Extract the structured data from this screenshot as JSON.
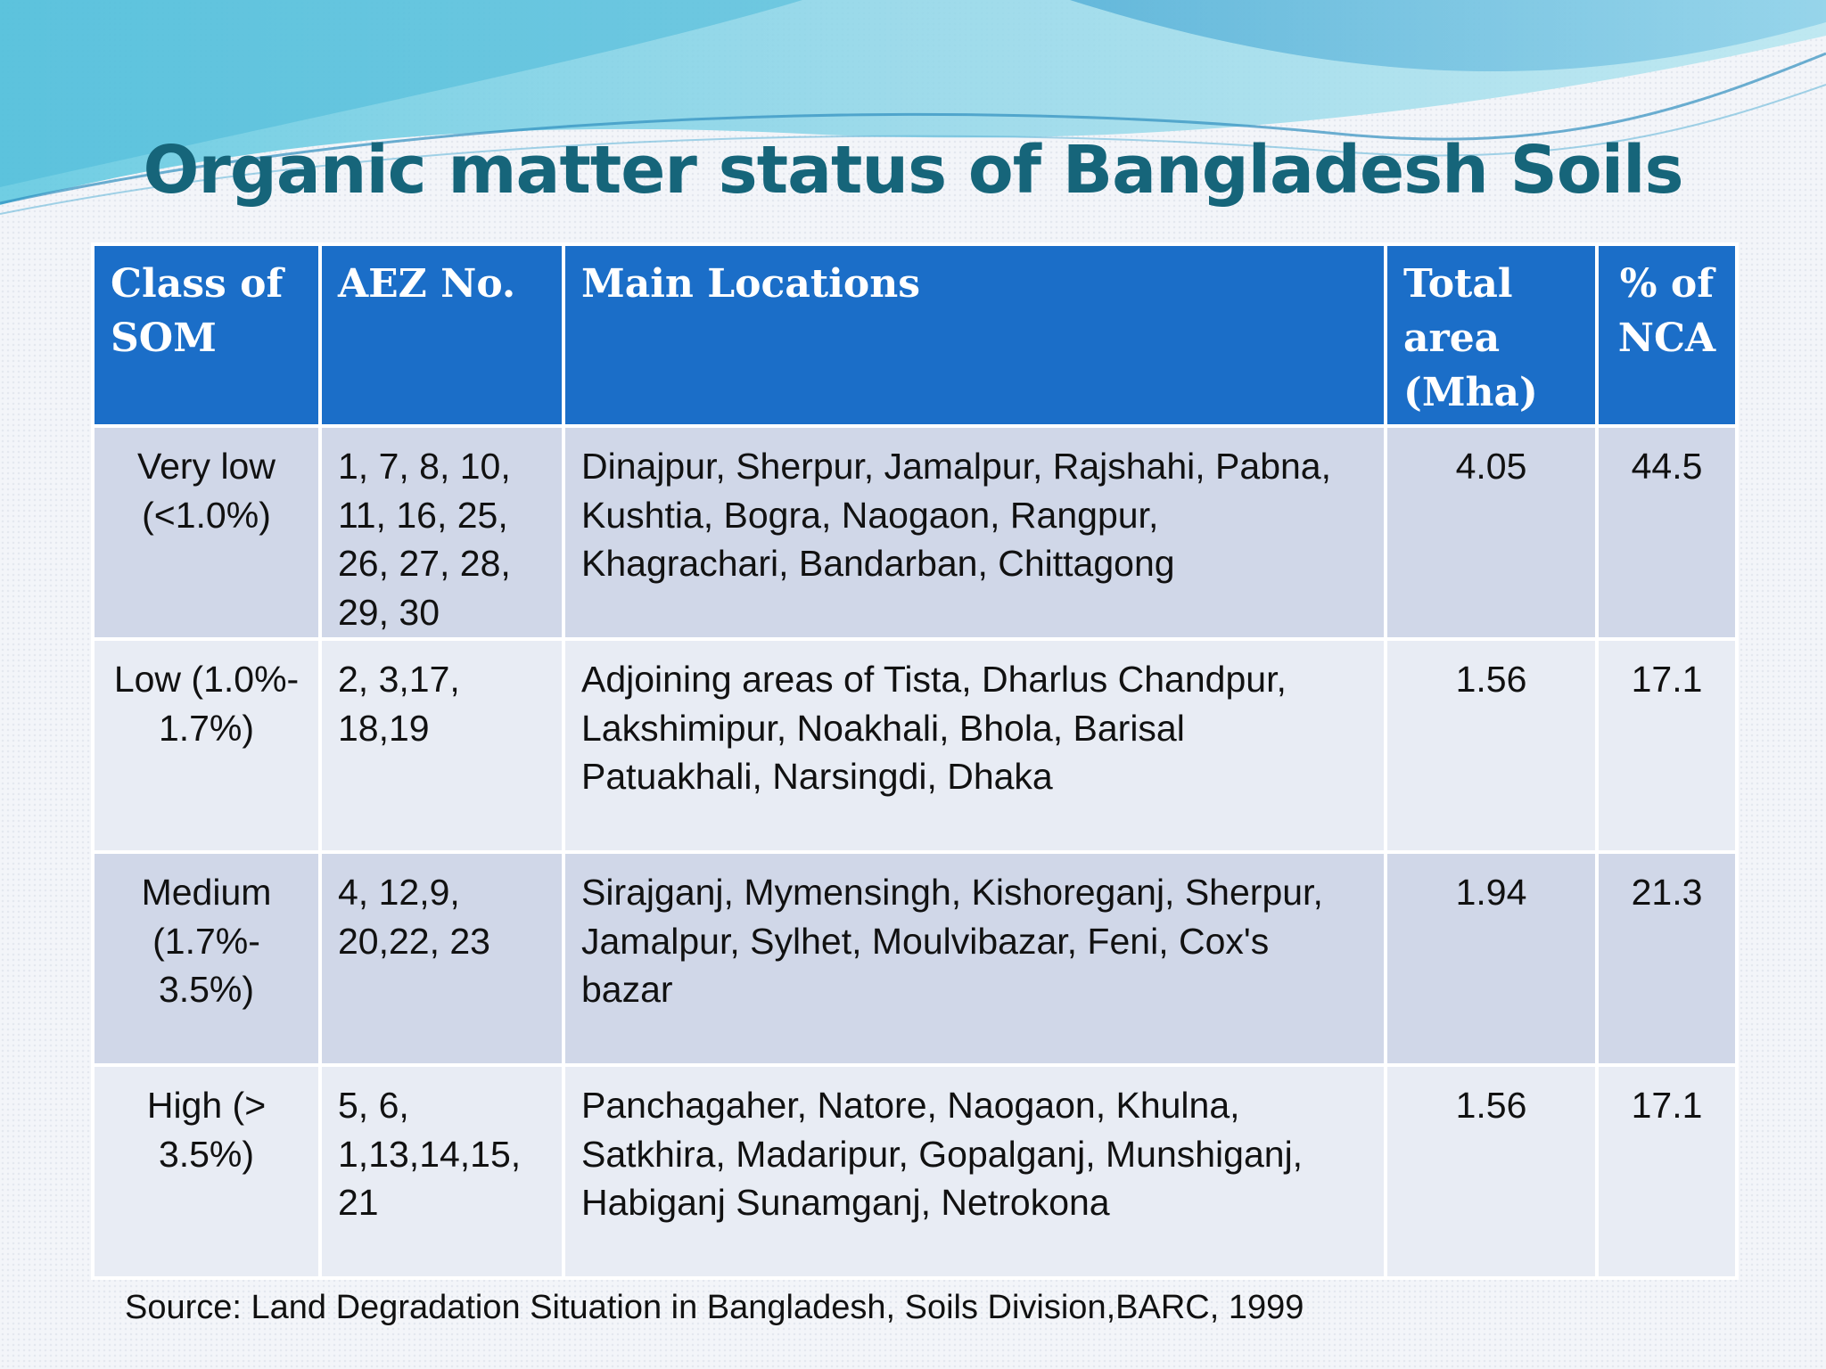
{
  "title": "Organic matter status of Bangladesh Soils",
  "colors": {
    "title": "#16657a",
    "header_bg": "#1b6ec8",
    "row_dark": "#d0d7e8",
    "row_light": "#e8ecf4"
  },
  "table": {
    "headers": [
      "Class of SOM",
      "AEZ No.",
      "Main Locations",
      "Total area (Mha)",
      "% of NCA"
    ],
    "rows": [
      {
        "class": "Very low (<1.0%)",
        "aez": "1, 7, 8, 10, 11, 16, 25, 26, 27, 28, 29, 30",
        "locations": "Dinajpur, Sherpur, Jamalpur, Rajshahi, Pabna, Kushtia, Bogra, Naogaon, Rangpur, Khagrachari, Bandarban, Chittagong",
        "area": "4.05",
        "pct": "44.5"
      },
      {
        "class": "Low (1.0%- 1.7%)",
        "aez": "2, 3,17, 18,19",
        "locations": "Adjoining areas of Tista, Dharlus Chandpur, Lakshimipur, Noakhali, Bhola, Barisal Patuakhali, Narsingdi, Dhaka",
        "area": "1.56",
        "pct": "17.1"
      },
      {
        "class": "Medium (1.7%- 3.5%)",
        "aez": "4, 12,9, 20,22, 23",
        "locations": "Sirajganj, Mymensingh, Kishoreganj, Sherpur, Jamalpur, Sylhet, Moulvibazar, Feni, Cox's bazar",
        "area": "1.94",
        "pct": "21.3"
      },
      {
        "class": "High (> 3.5%)",
        "aez": "5, 6, 1,13,14,15, 21",
        "locations": "Panchagaher, Natore, Naogaon, Khulna, Satkhira, Madaripur, Gopalganj, Munshiganj, Habiganj Sunamganj, Netrokona",
        "area": "1.56",
        "pct": "17.1"
      }
    ]
  },
  "source": "Source: Land Degradation Situation in Bangladesh, Soils Division,BARC, 1999"
}
